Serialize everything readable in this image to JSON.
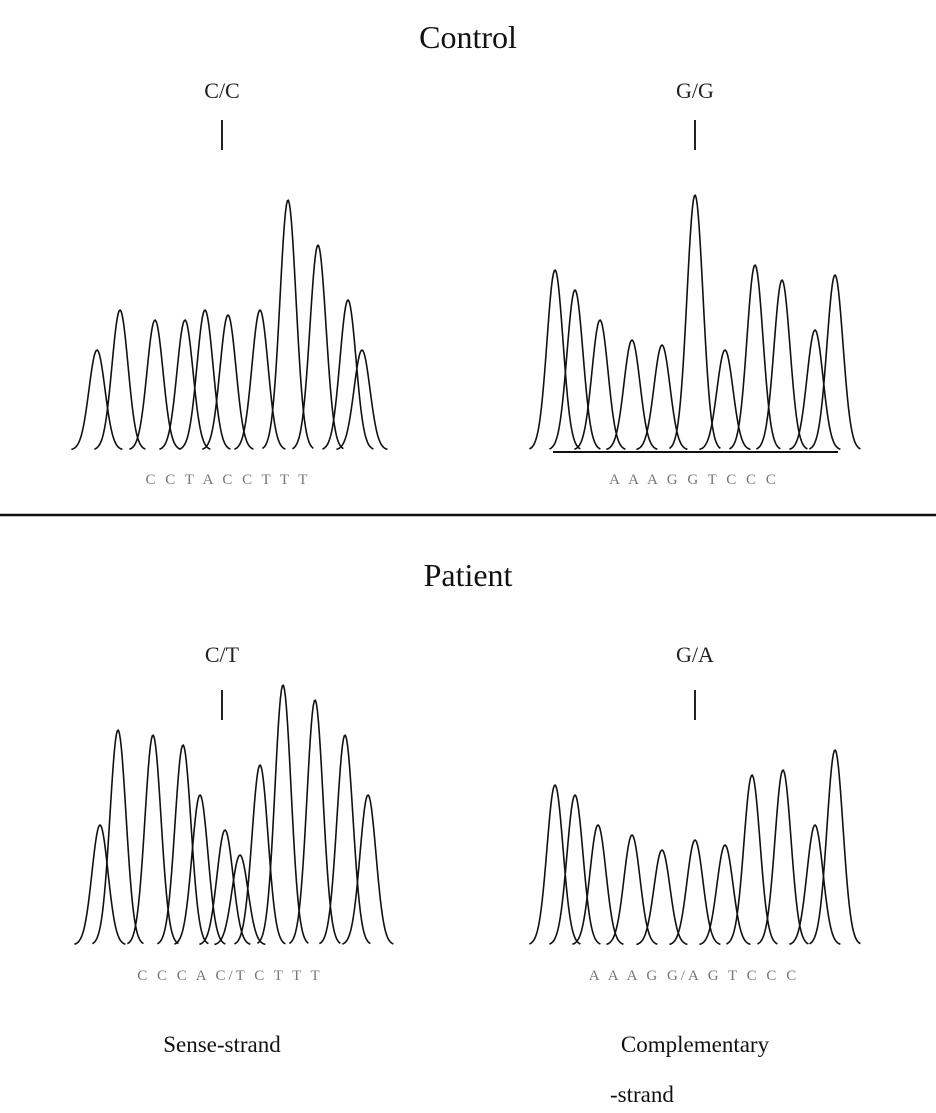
{
  "sections": [
    {
      "title": "Control",
      "panels": [
        {
          "genotype": "C/C",
          "bases": "C C T A C C T T T"
        },
        {
          "genotype": "G/G",
          "bases": "A A A G G T C C C"
        }
      ]
    },
    {
      "title": "Patient",
      "panels": [
        {
          "genotype": "C/T",
          "bases": "C C C A C/T C T T T"
        },
        {
          "genotype": "G/A",
          "bases": "A A A G G/A G T C C C"
        }
      ]
    }
  ],
  "captions": {
    "left": "Sense-strand",
    "right": [
      "Complementary",
      "-strand"
    ]
  }
}
